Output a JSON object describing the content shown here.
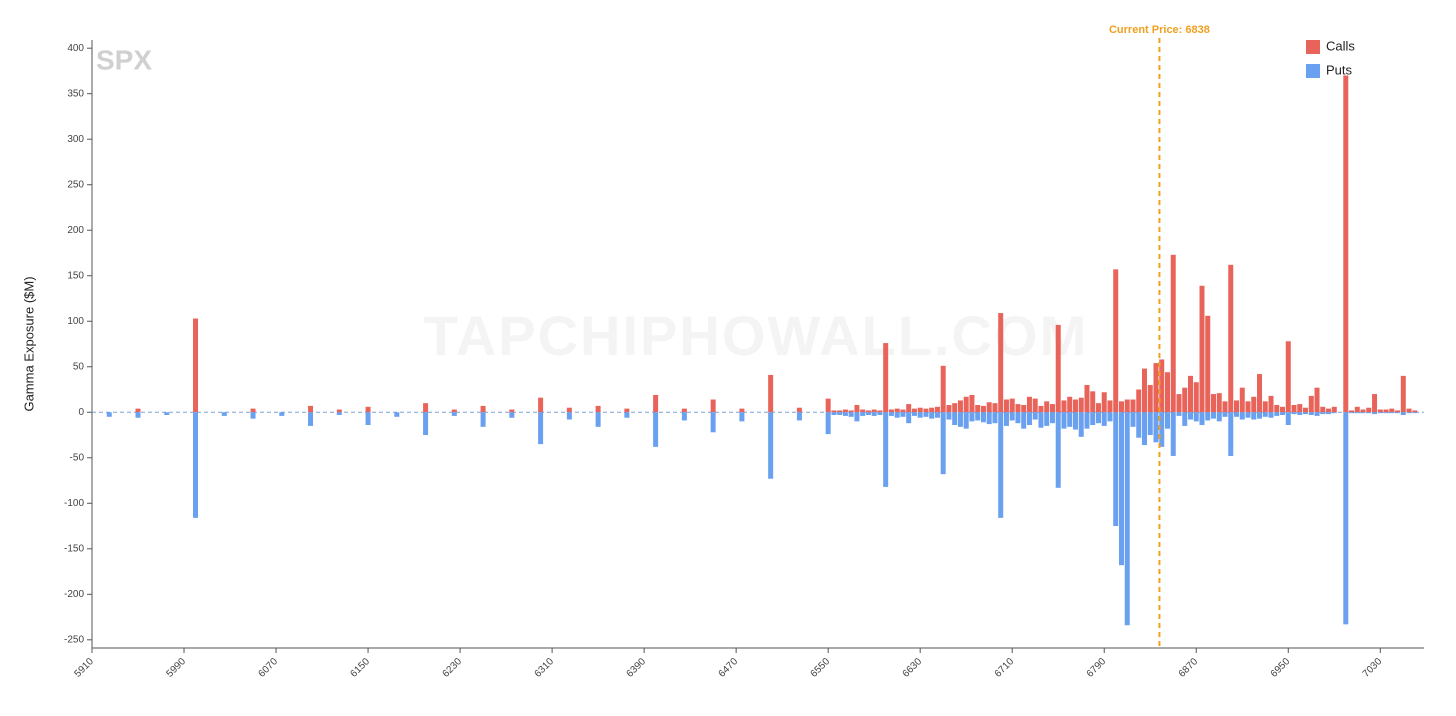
{
  "chart_data": {
    "type": "bar",
    "title": "SPX",
    "watermark": "TAPCHIPHOWALL.COM",
    "y_label": "Gamma Exposure ($M)",
    "annotation": {
      "value": 6838,
      "label": "Current Price: 6838",
      "color": "#f0a020"
    },
    "xlim": [
      5910,
      7068
    ],
    "ylim": [
      -259,
      409
    ],
    "xticks": [
      5910,
      5990,
      6070,
      6150,
      6230,
      6310,
      6390,
      6470,
      6550,
      6630,
      6710,
      6790,
      6870,
      6950,
      7030
    ],
    "yticks": [
      -250,
      -200,
      -150,
      -100,
      -50,
      0,
      50,
      100,
      150,
      200,
      250,
      300,
      350,
      400
    ],
    "legend_position": "top-right",
    "x": [
      5925,
      5950,
      5975,
      6000,
      6025,
      6050,
      6075,
      6100,
      6125,
      6150,
      6175,
      6200,
      6225,
      6250,
      6275,
      6300,
      6325,
      6350,
      6375,
      6400,
      6425,
      6450,
      6475,
      6500,
      6525,
      6550,
      6555,
      6560,
      6565,
      6570,
      6575,
      6580,
      6585,
      6590,
      6595,
      6600,
      6605,
      6610,
      6615,
      6620,
      6625,
      6630,
      6635,
      6640,
      6645,
      6650,
      6655,
      6660,
      6665,
      6670,
      6675,
      6680,
      6685,
      6690,
      6695,
      6700,
      6705,
      6710,
      6715,
      6720,
      6725,
      6730,
      6735,
      6740,
      6745,
      6750,
      6755,
      6760,
      6765,
      6770,
      6775,
      6780,
      6785,
      6790,
      6795,
      6800,
      6805,
      6810,
      6815,
      6820,
      6825,
      6830,
      6835,
      6840,
      6845,
      6850,
      6855,
      6860,
      6865,
      6870,
      6875,
      6880,
      6885,
      6890,
      6895,
      6900,
      6905,
      6910,
      6915,
      6920,
      6925,
      6930,
      6935,
      6940,
      6945,
      6950,
      6955,
      6960,
      6965,
      6970,
      6975,
      6980,
      6985,
      6990,
      6995,
      7000,
      7005,
      7010,
      7015,
      7020,
      7025,
      7030,
      7035,
      7040,
      7045,
      7050,
      7055,
      7060
    ],
    "series": [
      {
        "name": "Calls",
        "color": "#e8645a",
        "values": [
          0,
          4,
          0,
          103,
          0,
          4,
          0,
          7,
          3,
          6,
          0,
          10,
          3,
          7,
          3,
          16,
          5,
          7,
          4,
          19,
          4,
          14,
          4,
          41,
          5,
          15,
          2,
          2,
          3,
          2,
          8,
          3,
          2,
          3,
          2,
          76,
          3,
          4,
          3,
          9,
          4,
          5,
          4,
          5,
          6,
          51,
          8,
          10,
          13,
          17,
          19,
          8,
          7,
          11,
          10,
          109,
          14,
          15,
          9,
          8,
          17,
          15,
          7,
          12,
          9,
          96,
          13,
          17,
          14,
          16,
          30,
          23,
          10,
          22,
          13,
          157,
          12,
          14,
          14,
          25,
          48,
          30,
          54,
          58,
          44,
          173,
          20,
          27,
          40,
          33,
          139,
          106,
          20,
          21,
          12,
          162,
          13,
          27,
          12,
          17,
          42,
          12,
          18,
          8,
          6,
          78,
          8,
          9,
          5,
          18,
          27,
          6,
          4,
          6,
          0,
          370,
          2,
          6,
          3,
          5,
          20,
          3,
          3,
          4,
          2,
          40,
          4,
          2
        ]
      },
      {
        "name": "Puts",
        "color": "#6aa0f0",
        "values": [
          -5,
          -6,
          -3,
          -116,
          -4,
          -7,
          -4,
          -15,
          -3,
          -14,
          -5,
          -25,
          -4,
          -16,
          -6,
          -35,
          -8,
          -16,
          -6,
          -38,
          -9,
          -22,
          -10,
          -73,
          -9,
          -24,
          -3,
          -3,
          -4,
          -5,
          -10,
          -4,
          -3,
          -4,
          -3,
          -82,
          -4,
          -6,
          -5,
          -12,
          -4,
          -6,
          -5,
          -7,
          -6,
          -68,
          -8,
          -14,
          -16,
          -18,
          -10,
          -9,
          -11,
          -13,
          -12,
          -116,
          -15,
          -9,
          -12,
          -18,
          -14,
          -8,
          -17,
          -15,
          -12,
          -83,
          -18,
          -16,
          -19,
          -27,
          -18,
          -14,
          -12,
          -15,
          -10,
          -125,
          -168,
          -234,
          -16,
          -28,
          -36,
          -25,
          -33,
          -38,
          -18,
          -48,
          -4,
          -15,
          -8,
          -10,
          -14,
          -9,
          -7,
          -10,
          -5,
          -48,
          -5,
          -8,
          -6,
          -8,
          -7,
          -5,
          -6,
          -4,
          -3,
          -14,
          -2,
          -3,
          -2,
          -3,
          -4,
          -2,
          -2,
          -1,
          0,
          -233,
          -1,
          -1,
          -1,
          -1,
          -2,
          -1,
          -1,
          -1,
          -1,
          -3,
          -1,
          -1
        ]
      }
    ]
  }
}
